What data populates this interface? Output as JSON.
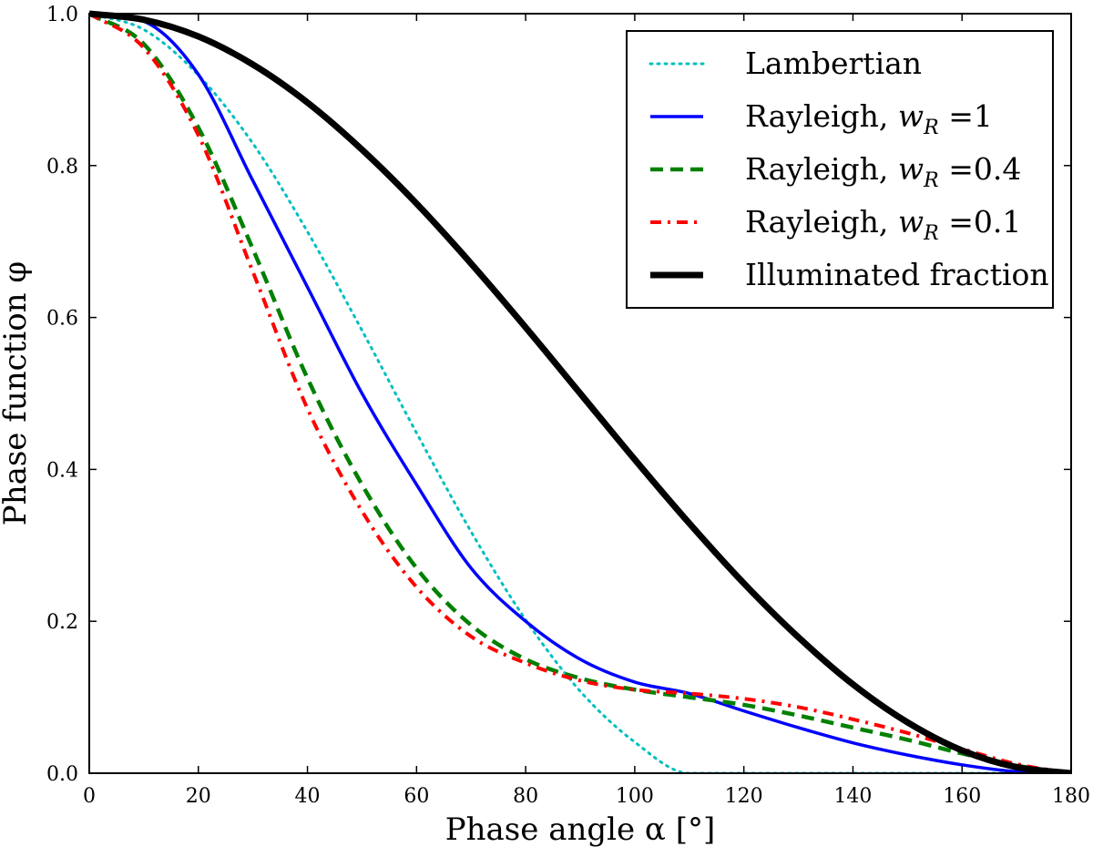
{
  "chart_data": {
    "type": "line",
    "title": "",
    "xlabel": "Phase angle α [°]",
    "ylabel": "Phase function φ",
    "xlim": [
      0,
      180
    ],
    "ylim": [
      0.0,
      1.0
    ],
    "x_ticks": [
      "0",
      "20",
      "40",
      "60",
      "80",
      "100",
      "120",
      "140",
      "160",
      "180"
    ],
    "y_ticks": [
      "0.0",
      "0.2",
      "0.4",
      "0.6",
      "0.8",
      "1.0"
    ],
    "grid": false,
    "legend_position": "top-right",
    "x": [
      0,
      10,
      20,
      30,
      40,
      50,
      60,
      70,
      80,
      90,
      100,
      110,
      120,
      130,
      140,
      150,
      160,
      170,
      180
    ],
    "series": [
      {
        "name": "Lambertian",
        "color": "#00bfbf",
        "style": "dotted",
        "values": [
          1.0,
          0.979,
          0.919,
          0.829,
          0.713,
          0.583,
          0.448,
          0.318,
          0.202,
          0.108,
          0.041,
          0.0,
          0.0,
          0.0,
          0.0,
          0.0,
          0.0,
          0.0,
          0.0
        ]
      },
      {
        "name": "Rayleigh, w_R =1",
        "color": "#0000ff",
        "style": "solid",
        "values": [
          1.0,
          0.99,
          0.92,
          0.78,
          0.64,
          0.5,
          0.38,
          0.27,
          0.2,
          0.15,
          0.12,
          0.105,
          0.082,
          0.06,
          0.04,
          0.024,
          0.011,
          0.002,
          0.0
        ]
      },
      {
        "name": "Rayleigh, w_R =0.4",
        "color": "#008000",
        "style": "dashed",
        "values": [
          1.0,
          0.96,
          0.85,
          0.69,
          0.52,
          0.38,
          0.27,
          0.195,
          0.15,
          0.125,
          0.11,
          0.1,
          0.09,
          0.076,
          0.06,
          0.044,
          0.026,
          0.01,
          0.0
        ]
      },
      {
        "name": "Rayleigh, w_R =0.1",
        "color": "#ff0000",
        "style": "dash-dot",
        "values": [
          1.0,
          0.955,
          0.84,
          0.66,
          0.48,
          0.345,
          0.245,
          0.18,
          0.145,
          0.122,
          0.11,
          0.105,
          0.098,
          0.087,
          0.071,
          0.053,
          0.032,
          0.012,
          0.0
        ]
      },
      {
        "name": "Illuminated fraction",
        "color": "#000000",
        "style": "solid-thick",
        "values": [
          1.0,
          0.992,
          0.97,
          0.933,
          0.883,
          0.821,
          0.75,
          0.671,
          0.587,
          0.5,
          0.413,
          0.329,
          0.25,
          0.179,
          0.117,
          0.067,
          0.03,
          0.008,
          0.0
        ]
      }
    ]
  },
  "legend": [
    {
      "name": "legend-lambertian",
      "text": "Lambertian",
      "subscript_var": "",
      "suffix": ""
    },
    {
      "name": "legend-rayleigh-1",
      "text": "Rayleigh, ",
      "subscript_var": "w",
      "subscript": "R",
      "suffix": " =1"
    },
    {
      "name": "legend-rayleigh-0-4",
      "text": "Rayleigh, ",
      "subscript_var": "w",
      "subscript": "R",
      "suffix": " =0.4"
    },
    {
      "name": "legend-rayleigh-0-1",
      "text": "Rayleigh, ",
      "subscript_var": "w",
      "subscript": "R",
      "suffix": " =0.1"
    },
    {
      "name": "legend-illuminated",
      "text": "Illuminated fraction",
      "subscript_var": "",
      "suffix": ""
    }
  ]
}
